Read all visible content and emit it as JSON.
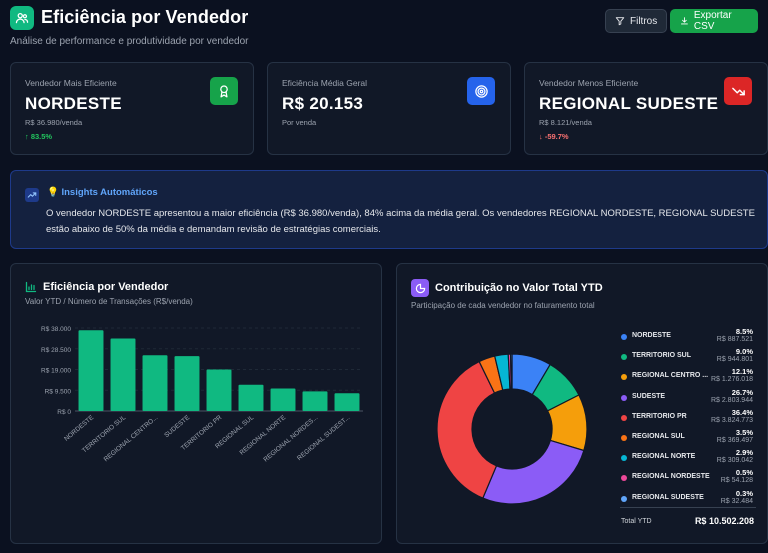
{
  "header": {
    "title": "Eficiência por Vendedor",
    "subtitle": "Análise de performance e produtividade por vendedor",
    "filter_label": "Filtros",
    "export_label": "Exportar CSV"
  },
  "kpis": [
    {
      "label": "Vendedor Mais Eficiente",
      "value": "NORDESTE",
      "sub": "R$ 36.980/venda",
      "delta": "↑ 83.5%",
      "delta_color": "#22c55e",
      "icon": "award-icon",
      "icon_bg": "#16a34a"
    },
    {
      "label": "Eficiência Média Geral",
      "value": "R$ 20.153",
      "sub": "Por venda",
      "delta": "",
      "delta_color": "#9ca3af",
      "icon": "target-icon",
      "icon_bg": "#2563eb"
    },
    {
      "label": "Vendedor Menos Eficiente",
      "value": "REGIONAL SUDESTE",
      "sub": "R$ 8.121/venda",
      "delta": "↓ -59.7%",
      "delta_color": "#f87171",
      "icon": "trending-down-icon",
      "icon_bg": "#dc2626"
    }
  ],
  "insights": {
    "title": "💡 Insights Automáticos",
    "text": "O vendedor NORDESTE apresentou a maior eficiência (R$ 36.980/venda), 84% acima da média geral. Os vendedores REGIONAL NORDESTE, REGIONAL SUDESTE estão abaixo de 50% da média e demandam revisão de estratégias comerciais."
  },
  "bar_panel": {
    "title": "Eficiência por Vendedor",
    "subtitle": "Valor YTD / Número de Transações (R$/venda)"
  },
  "donut_panel": {
    "title": "Contribuição no Valor Total YTD",
    "subtitle": "Participação de cada vendedor no faturamento total",
    "total_label": "Total YTD",
    "total_value": "R$ 10.502.208"
  },
  "chart_data": [
    {
      "type": "bar",
      "categories": [
        "NORDESTE",
        "TERRITORIO SUL",
        "REGIONAL CENTRO...",
        "SUDESTE",
        "TERRITORIO PR",
        "REGIONAL SUL",
        "REGIONAL NORTE",
        "REGIONAL NORDES...",
        "REGIONAL SUDEST..."
      ],
      "values": [
        36980,
        33200,
        25500,
        25100,
        19000,
        12000,
        10300,
        9000,
        8121
      ],
      "ylim": [
        0,
        38000
      ],
      "yticks": [
        0,
        9500,
        19000,
        28500,
        38000
      ],
      "ytick_labels": [
        "R$ 0",
        "R$ 9.500",
        "R$ 19.000",
        "R$ 28.500",
        "R$ 38.000"
      ],
      "color": "#10b981",
      "grid": true
    },
    {
      "type": "pie",
      "legend_position": "right",
      "slices": [
        {
          "name": "NORDESTE",
          "pct": "8.5%",
          "value": "R$ 887.521",
          "share": 8.5,
          "color": "#3b82f6"
        },
        {
          "name": "TERRITORIO SUL",
          "pct": "9.0%",
          "value": "R$ 944.801",
          "share": 9.0,
          "color": "#10b981"
        },
        {
          "name": "REGIONAL CENTRO ...",
          "pct": "12.1%",
          "value": "R$ 1.276.018",
          "share": 12.1,
          "color": "#f59e0b"
        },
        {
          "name": "SUDESTE",
          "pct": "26.7%",
          "value": "R$ 2.803.944",
          "share": 26.7,
          "color": "#8b5cf6"
        },
        {
          "name": "TERRITORIO PR",
          "pct": "36.4%",
          "value": "R$ 3.824.773",
          "share": 36.4,
          "color": "#ef4444"
        },
        {
          "name": "REGIONAL SUL",
          "pct": "3.5%",
          "value": "R$ 369.497",
          "share": 3.5,
          "color": "#f97316"
        },
        {
          "name": "REGIONAL NORTE",
          "pct": "2.9%",
          "value": "R$ 309.042",
          "share": 2.9,
          "color": "#06b6d4"
        },
        {
          "name": "REGIONAL NORDESTE",
          "pct": "0.5%",
          "value": "R$ 54.128",
          "share": 0.5,
          "color": "#ec4899"
        },
        {
          "name": "REGIONAL SUDESTE",
          "pct": "0.3%",
          "value": "R$ 32.484",
          "share": 0.3,
          "color": "#60a5fa"
        }
      ]
    }
  ]
}
